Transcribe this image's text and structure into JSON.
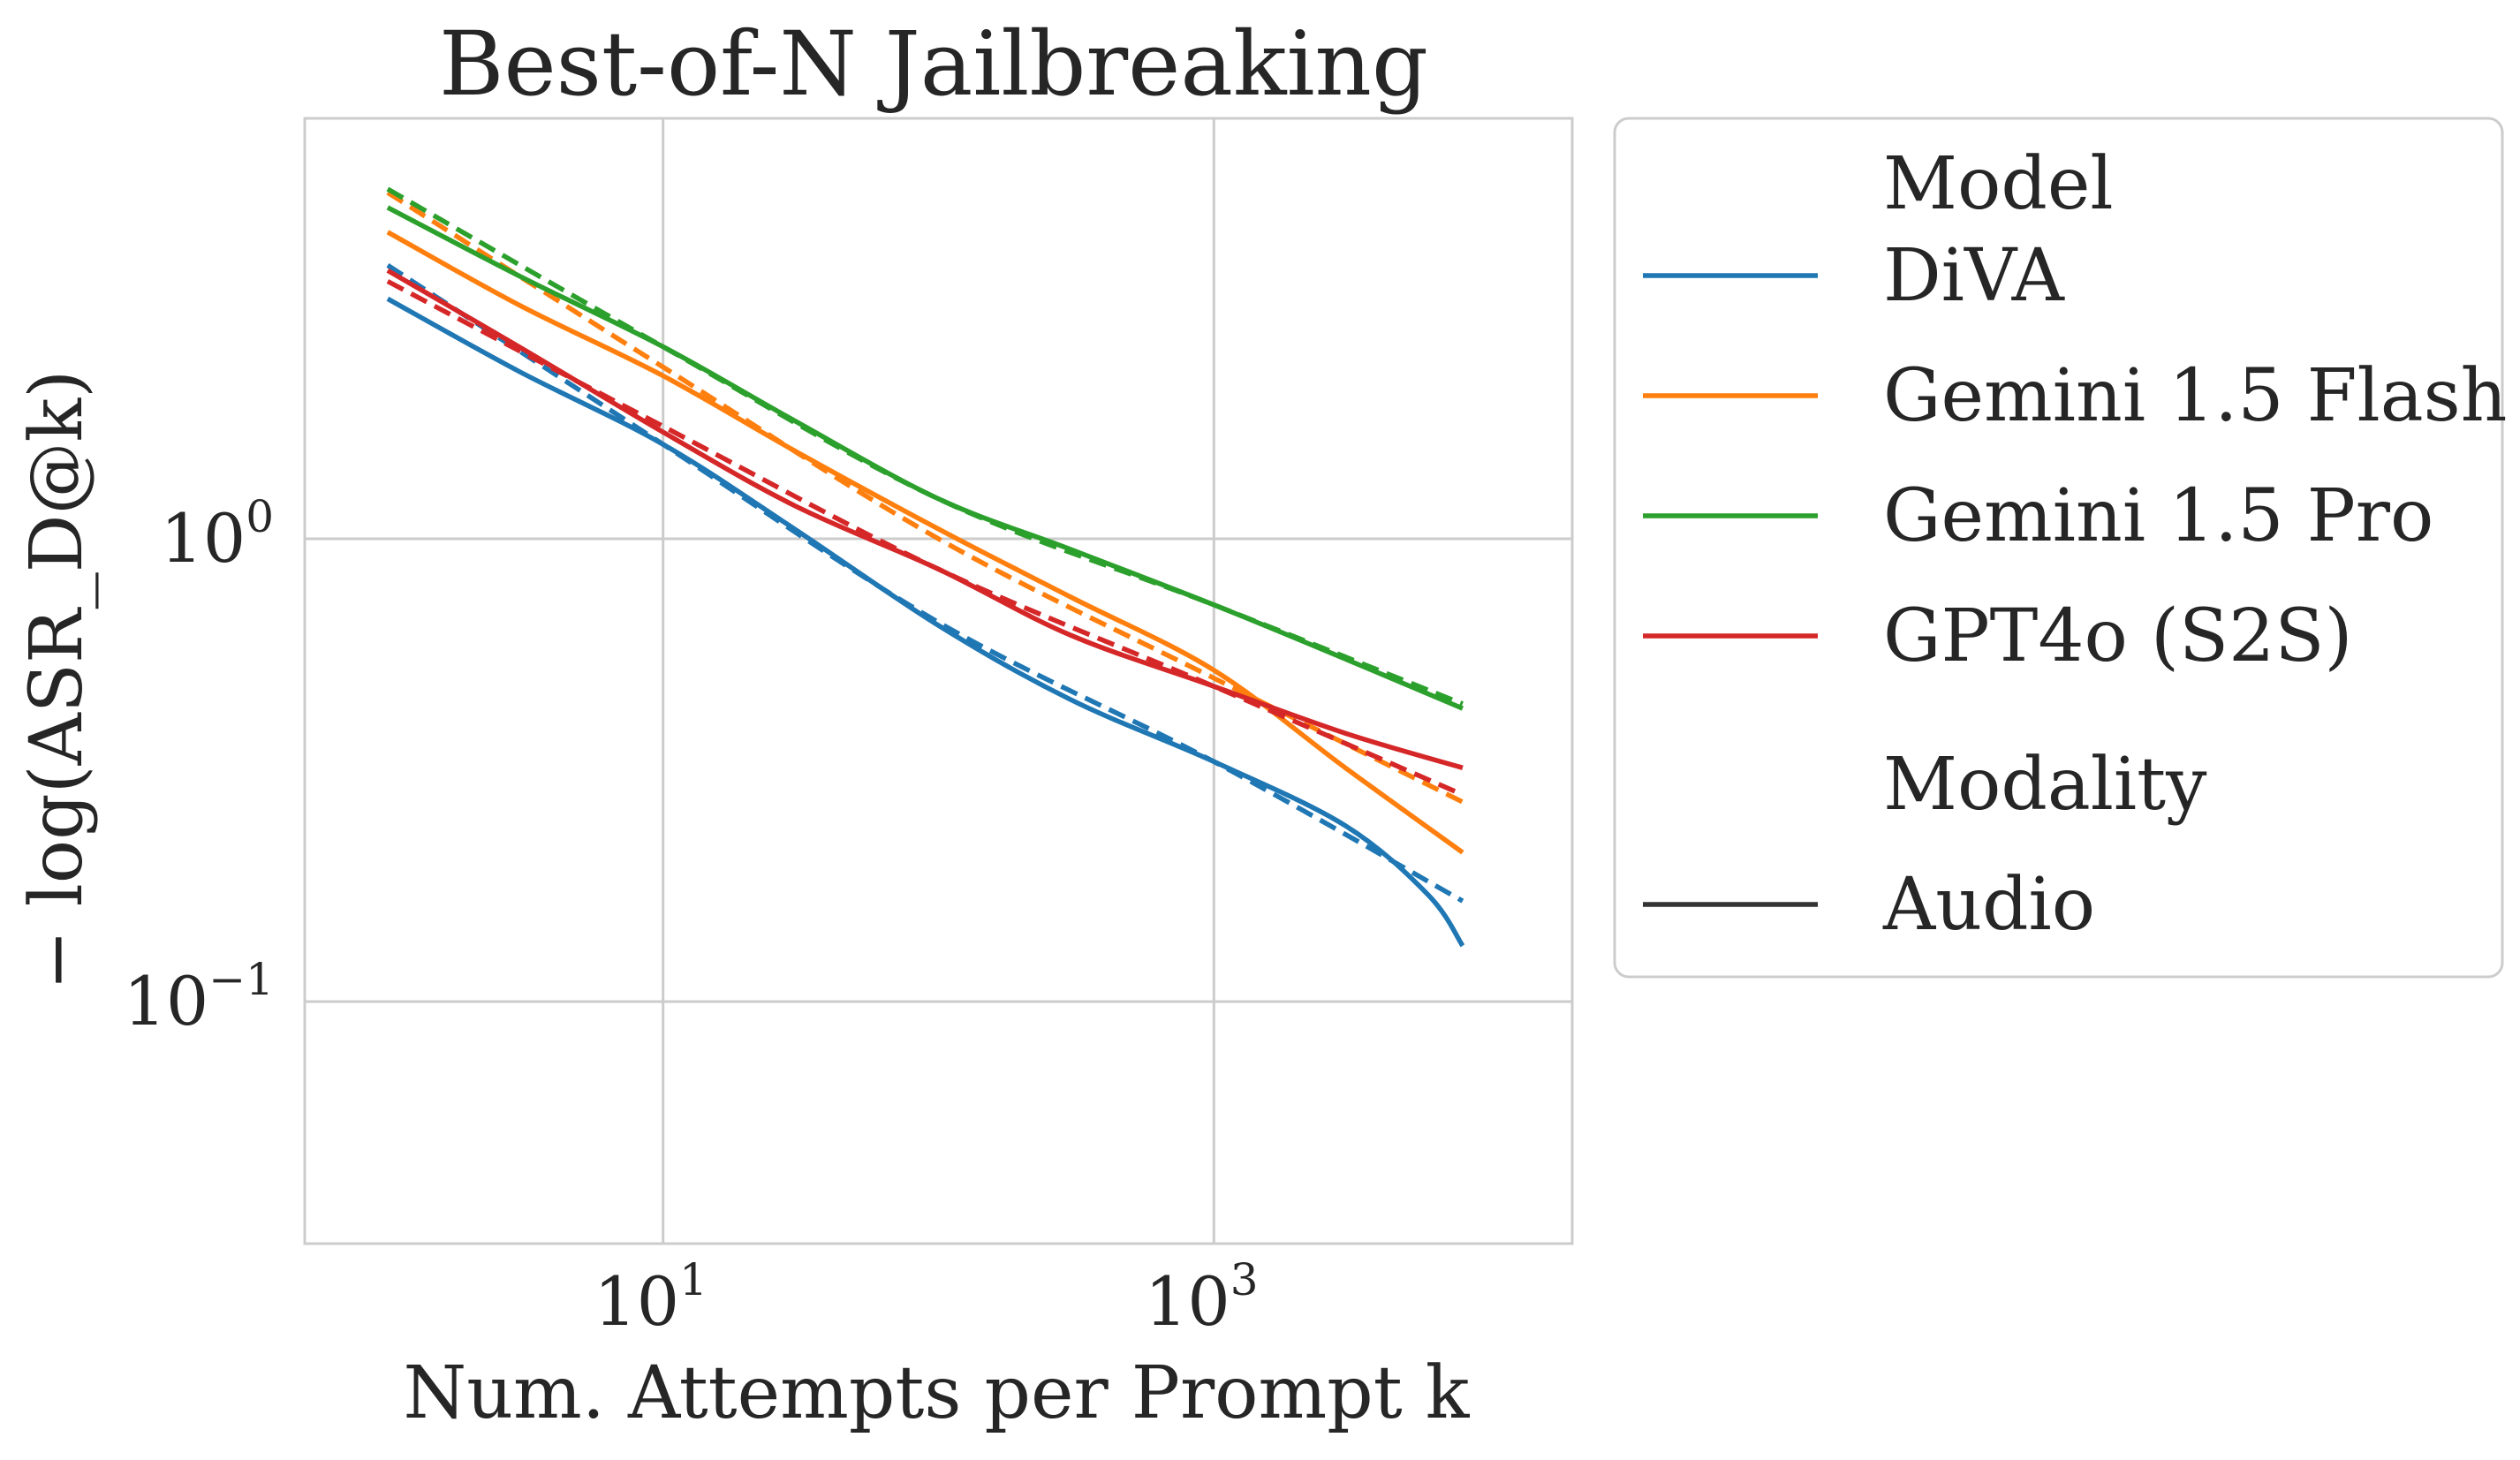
{
  "chart_data": {
    "type": "line",
    "title": "Best-of-N Jailbreaking",
    "xlabel": "Num. Attempts per Prompt k",
    "ylabel": "− log(ASR_D@k)",
    "xscale": "log",
    "yscale": "log",
    "xlim": [
      0.5,
      20000
    ],
    "ylim": [
      0.03,
      8.1
    ],
    "grid": true,
    "xticks": [
      {
        "value": 10,
        "base": "10",
        "exp": "1"
      },
      {
        "value": 1000,
        "base": "10",
        "exp": "3"
      }
    ],
    "yticks": [
      {
        "value": 0.1,
        "base": "10",
        "exp": "−1"
      },
      {
        "value": 1,
        "base": "10",
        "exp": "0"
      }
    ],
    "series": [
      {
        "name": "DiVA",
        "color": "#1f77b4",
        "solid": {
          "x": [
            1,
            3,
            10,
            30,
            100,
            300,
            1000,
            3000,
            6000,
            8000
          ],
          "y": [
            3.3,
            2.3,
            1.6,
            1.05,
            0.65,
            0.45,
            0.33,
            0.24,
            0.17,
            0.132
          ]
        },
        "dashed": {
          "x": [
            1,
            10,
            100,
            1000,
            8000
          ],
          "y": [
            3.9,
            1.6,
            0.66,
            0.33,
            0.165
          ]
        }
      },
      {
        "name": "Gemini 1.5 Flash",
        "color": "#ff7f0e",
        "solid": {
          "x": [
            1,
            3,
            10,
            30,
            100,
            300,
            1000,
            3000,
            8000
          ],
          "y": [
            4.6,
            3.2,
            2.25,
            1.55,
            1.05,
            0.75,
            0.52,
            0.32,
            0.21
          ]
        },
        "dashed": {
          "x": [
            1,
            10,
            100,
            1000,
            8000
          ],
          "y": [
            5.6,
            2.35,
            1.0,
            0.5,
            0.27
          ]
        }
      },
      {
        "name": "Gemini 1.5 Pro",
        "color": "#2ca02c",
        "solid": {
          "x": [
            1,
            3,
            10,
            30,
            100,
            300,
            1000,
            3000,
            8000
          ],
          "y": [
            5.2,
            3.7,
            2.6,
            1.8,
            1.22,
            0.95,
            0.72,
            0.55,
            0.43
          ]
        },
        "dashed": {
          "x": [
            1,
            10,
            100,
            1000,
            8000
          ],
          "y": [
            5.7,
            2.6,
            1.22,
            0.72,
            0.44
          ]
        }
      },
      {
        "name": "GPT4o (S2S)",
        "color": "#d62728",
        "solid": {
          "x": [
            1,
            3,
            10,
            30,
            100,
            300,
            1000,
            3000,
            8000
          ],
          "y": [
            3.8,
            2.6,
            1.7,
            1.18,
            0.86,
            0.62,
            0.48,
            0.38,
            0.32
          ]
        },
        "dashed": {
          "x": [
            1,
            10,
            100,
            1000,
            8000
          ],
          "y": [
            3.6,
            1.75,
            0.86,
            0.48,
            0.28
          ]
        }
      }
    ],
    "legend": {
      "placement": "outside-right",
      "model_header": "Model",
      "modality_header": "Modality",
      "modality_items": [
        {
          "name": "Audio",
          "color": "#333333"
        }
      ]
    }
  }
}
